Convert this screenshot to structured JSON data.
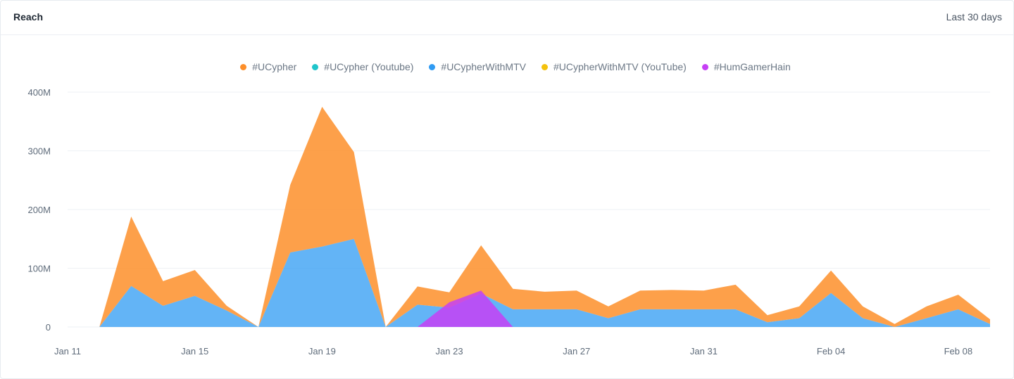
{
  "header": {
    "title": "Reach",
    "range": "Last 30 days"
  },
  "colors": {
    "UCypher": "#fd8f2a",
    "UCypherYoutube": "#1fc5cb",
    "UCypherWithMTV": "#2f9bf3",
    "UCypherWithMTVYouTube": "#f4c20d",
    "HumGamerHain": "#c640f5"
  },
  "chart_data": {
    "type": "area",
    "title": "",
    "xlabel": "",
    "ylabel": "",
    "ylim": [
      0,
      400
    ],
    "y_ticks": [
      "0",
      "100M",
      "200M",
      "300M",
      "400M"
    ],
    "x_ticks": [
      "Jan 11",
      "Jan 15",
      "Jan 19",
      "Jan 23",
      "Jan 27",
      "Jan 31",
      "Feb 04",
      "Feb 08"
    ],
    "x": [
      "Jan 11",
      "Jan 12",
      "Jan 13",
      "Jan 14",
      "Jan 15",
      "Jan 16",
      "Jan 17",
      "Jan 18",
      "Jan 19",
      "Jan 20",
      "Jan 21",
      "Jan 22",
      "Jan 23",
      "Jan 24",
      "Jan 25",
      "Jan 26",
      "Jan 27",
      "Jan 28",
      "Jan 29",
      "Jan 30",
      "Jan 31",
      "Feb 01",
      "Feb 02",
      "Feb 03",
      "Feb 04",
      "Feb 05",
      "Feb 06",
      "Feb 07",
      "Feb 08",
      "Feb 09"
    ],
    "stacked": true,
    "grid": true,
    "legend_position": "top",
    "series": [
      {
        "name": "#HumGamerHain",
        "key": "HumGamerHain",
        "values": [
          0,
          0,
          0,
          0,
          0,
          0,
          0,
          0,
          0,
          0,
          0,
          0,
          42,
          62,
          0,
          0,
          0,
          0,
          0,
          0,
          0,
          0,
          0,
          0,
          0,
          0,
          0,
          0,
          0,
          0
        ]
      },
      {
        "name": "#UCypherWithMTV",
        "key": "UCypherWithMTV",
        "values": [
          0,
          0,
          70,
          36,
          53,
          28,
          0,
          127,
          137,
          150,
          0,
          38,
          33,
          57,
          30,
          30,
          30,
          15,
          30,
          30,
          30,
          30,
          8,
          15,
          58,
          15,
          0,
          15,
          30,
          5
        ]
      },
      {
        "name": "#UCypher",
        "key": "UCypher",
        "values": [
          0,
          0,
          118,
          42,
          44,
          8,
          0,
          115,
          238,
          148,
          0,
          31,
          26,
          82,
          35,
          30,
          32,
          20,
          32,
          33,
          32,
          42,
          12,
          20,
          38,
          20,
          5,
          20,
          25,
          8
        ]
      },
      {
        "name": "#UCypher (Youtube)",
        "key": "UCypherYoutube",
        "values": [
          0,
          0,
          0,
          0,
          0,
          0,
          0,
          0,
          0,
          0,
          0,
          0,
          0,
          0,
          0,
          0,
          0,
          0,
          0,
          0,
          0,
          0,
          0,
          0,
          0,
          0,
          0,
          0,
          0,
          0
        ]
      },
      {
        "name": "#UCypherWithMTV (YouTube)",
        "key": "UCypherWithMTVYouTube",
        "values": [
          0,
          0,
          0,
          0,
          0,
          0,
          0,
          0,
          0,
          0,
          0,
          0,
          0,
          0,
          0,
          0,
          0,
          0,
          0,
          0,
          0,
          0,
          0,
          0,
          0,
          0,
          0,
          0,
          0,
          0
        ]
      }
    ],
    "legend": [
      {
        "name": "#UCypher",
        "key": "UCypher"
      },
      {
        "name": "#UCypher (Youtube)",
        "key": "UCypherYoutube"
      },
      {
        "name": "#UCypherWithMTV",
        "key": "UCypherWithMTV"
      },
      {
        "name": "#UCypherWithMTV (YouTube)",
        "key": "UCypherWithMTVYouTube"
      },
      {
        "name": "#HumGamerHain",
        "key": "HumGamerHain"
      }
    ]
  }
}
